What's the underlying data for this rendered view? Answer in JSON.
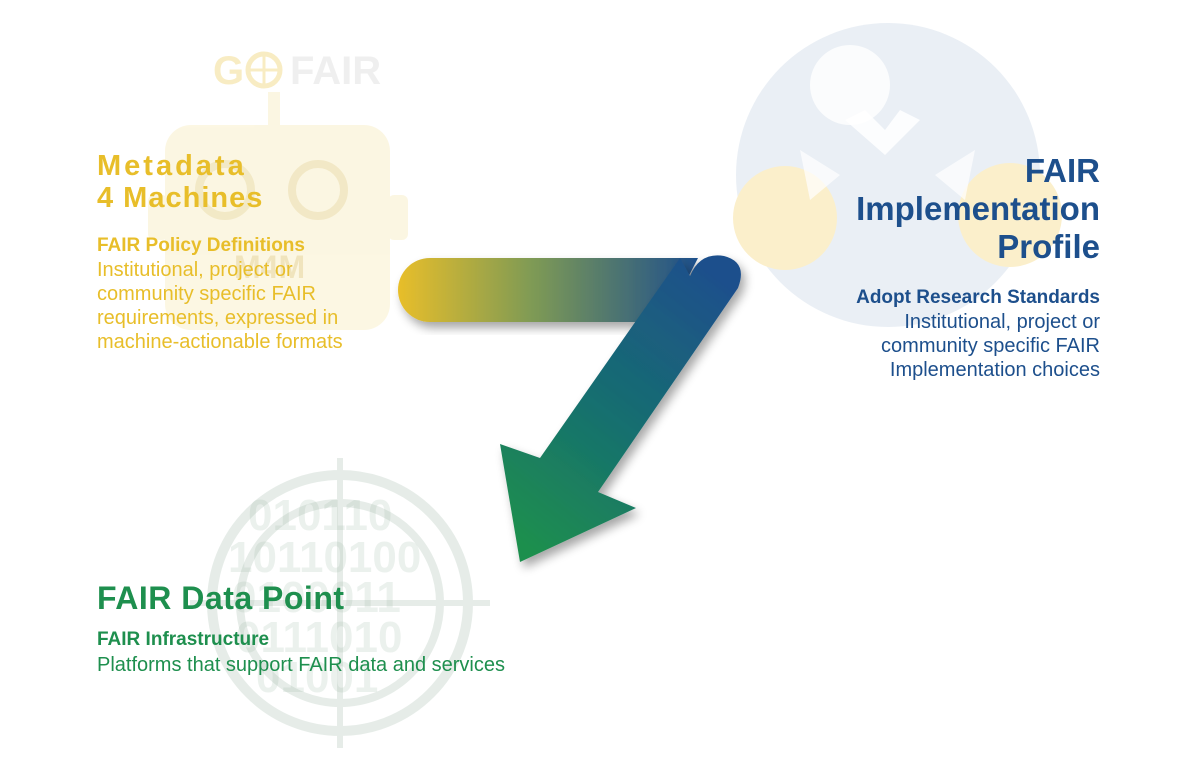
{
  "logo": {
    "text": "GO FAIR"
  },
  "m4m": {
    "title_line1": "Metadata",
    "title_line2": "4 Machines",
    "subtitle": "FAIR Policy Definitions",
    "body": [
      "Institutional, project or",
      "community specific FAIR",
      "requirements, expressed in",
      "machine-actionable formats"
    ],
    "badge": "M4M"
  },
  "fip": {
    "title_line1": "FAIR",
    "title_line2": "Implementation",
    "title_line3": "Profile",
    "subtitle": "Adopt Research Standards",
    "body": [
      "Institutional, project or",
      "community specific FAIR",
      "Implementation choices"
    ]
  },
  "fdp": {
    "title": "FAIR Data Point",
    "subtitle": "FAIR Infrastructure",
    "body": "Platforms that support FAIR data and services",
    "binary_rows": [
      "010110",
      "10110100",
      "0100011",
      "0111010",
      "01001"
    ]
  },
  "colors": {
    "yellow": "#E8BE2A",
    "blue": "#1D4F8C",
    "green": "#1E8F4E"
  }
}
